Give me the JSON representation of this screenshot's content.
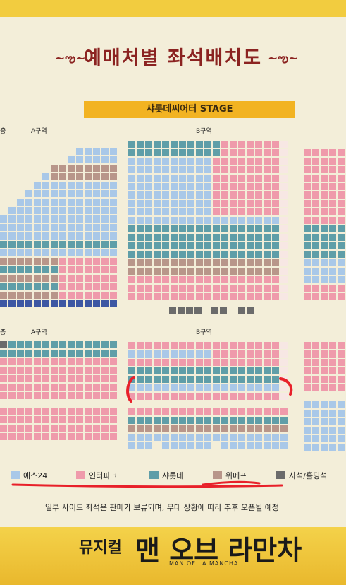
{
  "title": "예매처별 좌석배치도",
  "title_ornament_left": "~ఌ~",
  "title_ornament_right": "~ఌ~",
  "stage_label": "샤롯데씨어터 STAGE",
  "floor1": {
    "side_left": "층",
    "a_label": "A구역",
    "b_label": "B구역"
  },
  "floor2": {
    "side_left": "층",
    "a_label": "A구역",
    "b_label": "B구역"
  },
  "legend": [
    {
      "label": "예스24",
      "color": "#a9c8e8"
    },
    {
      "label": "인터파크",
      "color": "#ef9aab"
    },
    {
      "label": "샤롯데",
      "color": "#5f9ea8"
    },
    {
      "label": "위메프",
      "color": "#b8968a"
    },
    {
      "label": "사석/홀딩석",
      "color": "#6b6b6b"
    }
  ],
  "notice": "일부 사이드 좌석은 판매가 보류되며, 무대 상황에 따라 추후 오픈될 예정",
  "footer": {
    "prefix": "뮤지컬",
    "title": "맨 오브 라만차",
    "subtitle": "MAN OF LA MANCHA"
  },
  "colors": {
    "yes24": "#a9c8e8",
    "interpark": "#ef9aab",
    "charlotte": "#5f9ea8",
    "wemakeprice": "#b8968a",
    "hold": "#6b6b6b",
    "navy": "#3d57a3",
    "accent": "#8b2321"
  }
}
